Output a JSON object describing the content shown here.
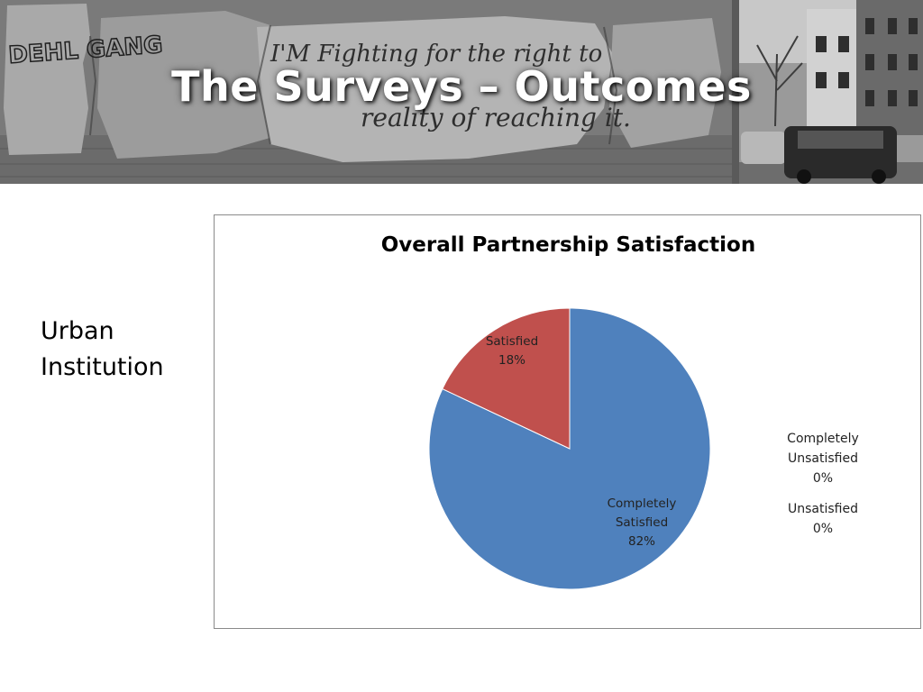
{
  "slide": {
    "title": "The Surveys – Outcomes",
    "side_label_lines": [
      "Urban",
      "Institution"
    ]
  },
  "banner": {
    "graffiti_text_lines": [
      "I'M Fighting for the right to",
      "reality of reaching it."
    ],
    "tag_text": "DEHL GANG"
  },
  "chart_data": {
    "type": "pie",
    "title": "Overall Partnership Satisfaction",
    "slices": [
      {
        "label": "Completely Satisfied",
        "label_lines": [
          "Completely",
          "Satisfied"
        ],
        "value": 82,
        "value_label": "82%",
        "color": "#4f81bd"
      },
      {
        "label": "Satisfied",
        "label_lines": [
          "Satisfied"
        ],
        "value": 18,
        "value_label": "18%",
        "color": "#c0504d"
      },
      {
        "label": "Completely Unsatisfied",
        "label_lines": [
          "Completely",
          "Unsatisfied"
        ],
        "value": 0,
        "value_label": "0%",
        "color": "#9bbb59"
      },
      {
        "label": "Unsatisfied",
        "label_lines": [
          "Unsatisfied"
        ],
        "value": 0,
        "value_label": "0%",
        "color": "#8064a2"
      }
    ],
    "legend": "none",
    "start_angle_deg": 0
  }
}
